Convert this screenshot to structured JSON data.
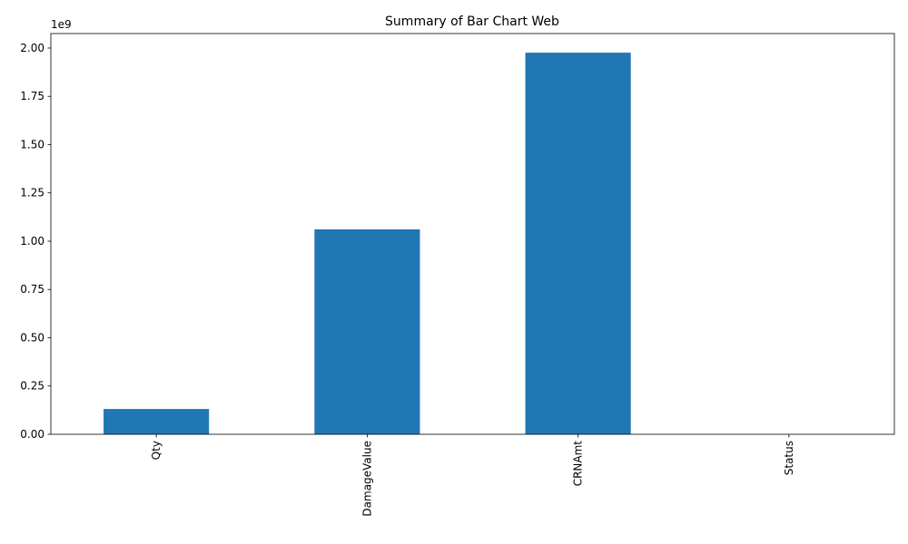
{
  "chart_data": {
    "type": "bar",
    "title": "Summary of Bar Chart Web",
    "categories": [
      "Qty",
      "DamageValue",
      "CRNAmt",
      "Status"
    ],
    "values": [
      131000000,
      1061000000,
      1976000000,
      0
    ],
    "color": "#1f77b4",
    "ylim": [
      0,
      2075000000
    ],
    "yticks": [
      {
        "value": 0,
        "label": "0.00"
      },
      {
        "value": 250000000,
        "label": "0.25"
      },
      {
        "value": 500000000,
        "label": "0.50"
      },
      {
        "value": 750000000,
        "label": "0.75"
      },
      {
        "value": 1000000000,
        "label": "1.00"
      },
      {
        "value": 1250000000,
        "label": "1.25"
      },
      {
        "value": 1500000000,
        "label": "1.50"
      },
      {
        "value": 1750000000,
        "label": "1.75"
      },
      {
        "value": 2000000000,
        "label": "2.00"
      }
    ],
    "y_offset_label": "1e9",
    "grid": false
  }
}
